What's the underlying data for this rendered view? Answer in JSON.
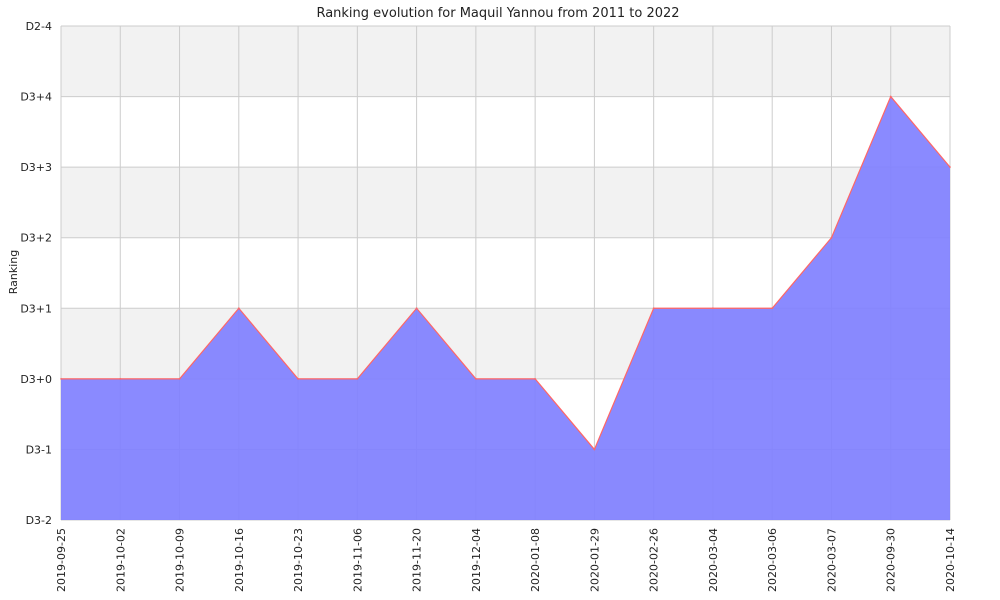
{
  "chart_data": {
    "type": "area",
    "title": "Ranking evolution for Maquil Yannou from 2011 to 2022",
    "xlabel": "",
    "ylabel": "Ranking",
    "x": [
      "2019-09-25",
      "2019-10-02",
      "2019-10-09",
      "2019-10-16",
      "2019-10-23",
      "2019-11-06",
      "2019-11-20",
      "2019-12-04",
      "2020-01-08",
      "2020-01-29",
      "2020-02-26",
      "2020-03-04",
      "2020-03-06",
      "2020-03-07",
      "2020-09-30",
      "2020-10-14"
    ],
    "y_tick_labels": [
      "D3-2",
      "D3-1",
      "D3+0",
      "D3+1",
      "D3+2",
      "D3+3",
      "D3+4",
      "D2-4"
    ],
    "series": [
      {
        "values": [
          "D3+0",
          "D3+0",
          "D3+0",
          "D3+1",
          "D3+0",
          "D3+0",
          "D3+1",
          "D3+0",
          "D3+0",
          "D3-1",
          "D3+1",
          "D3+1",
          "D3+1",
          "D3+2",
          "D3+4",
          "D3+3"
        ]
      }
    ],
    "grid": true,
    "colors": {
      "fill": "#8080ff",
      "line": "#ff6666",
      "band": "#f2f2f2",
      "grid": "#cccccc"
    }
  }
}
